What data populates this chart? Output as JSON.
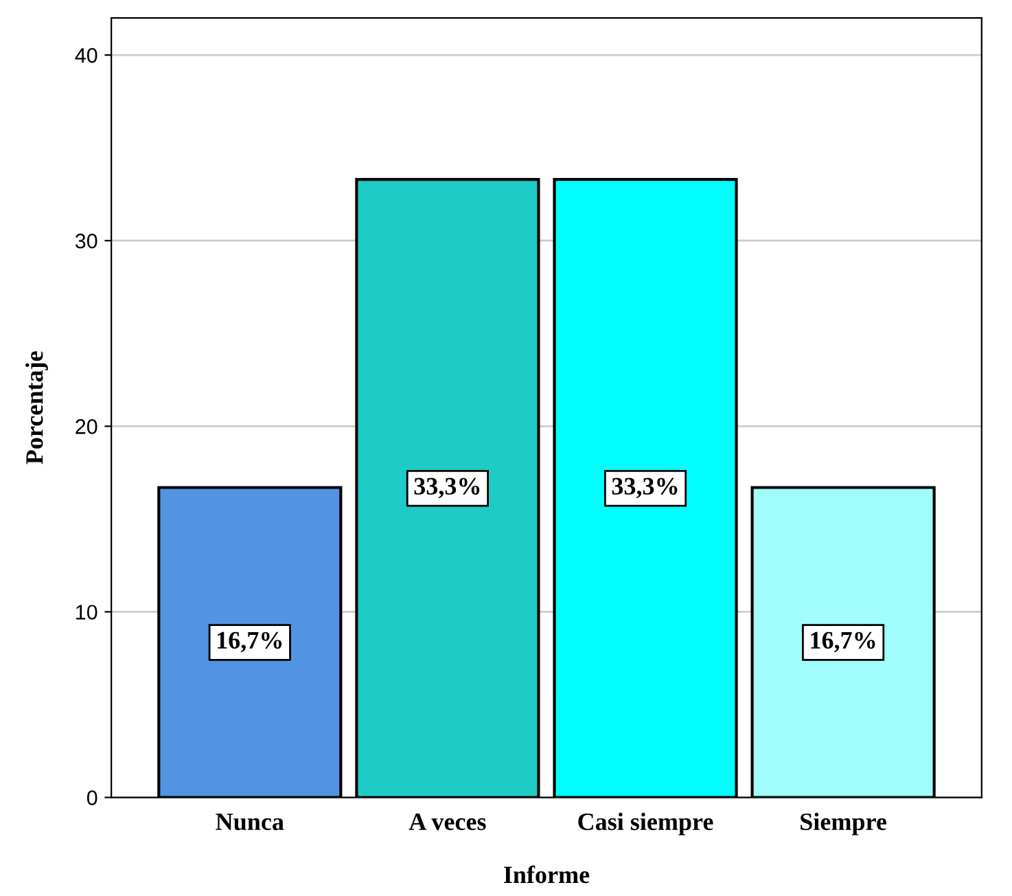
{
  "chart_data": {
    "type": "bar",
    "xlabel": "Informe",
    "ylabel": "Porcentaje",
    "categories": [
      "Nunca",
      "A veces",
      "Casi siempre",
      "Siempre"
    ],
    "values": [
      16.7,
      33.3,
      33.3,
      16.7
    ],
    "colors": [
      "#5294e2",
      "#1ecbc6",
      "#00ffff",
      "#a0fdfc"
    ],
    "value_labels": [
      "16,7%",
      "33,3%",
      "33,3%",
      "16,7%"
    ],
    "ylim": [
      0,
      42
    ],
    "yticks": [
      0,
      10,
      20,
      30,
      40
    ],
    "grid": "y"
  }
}
